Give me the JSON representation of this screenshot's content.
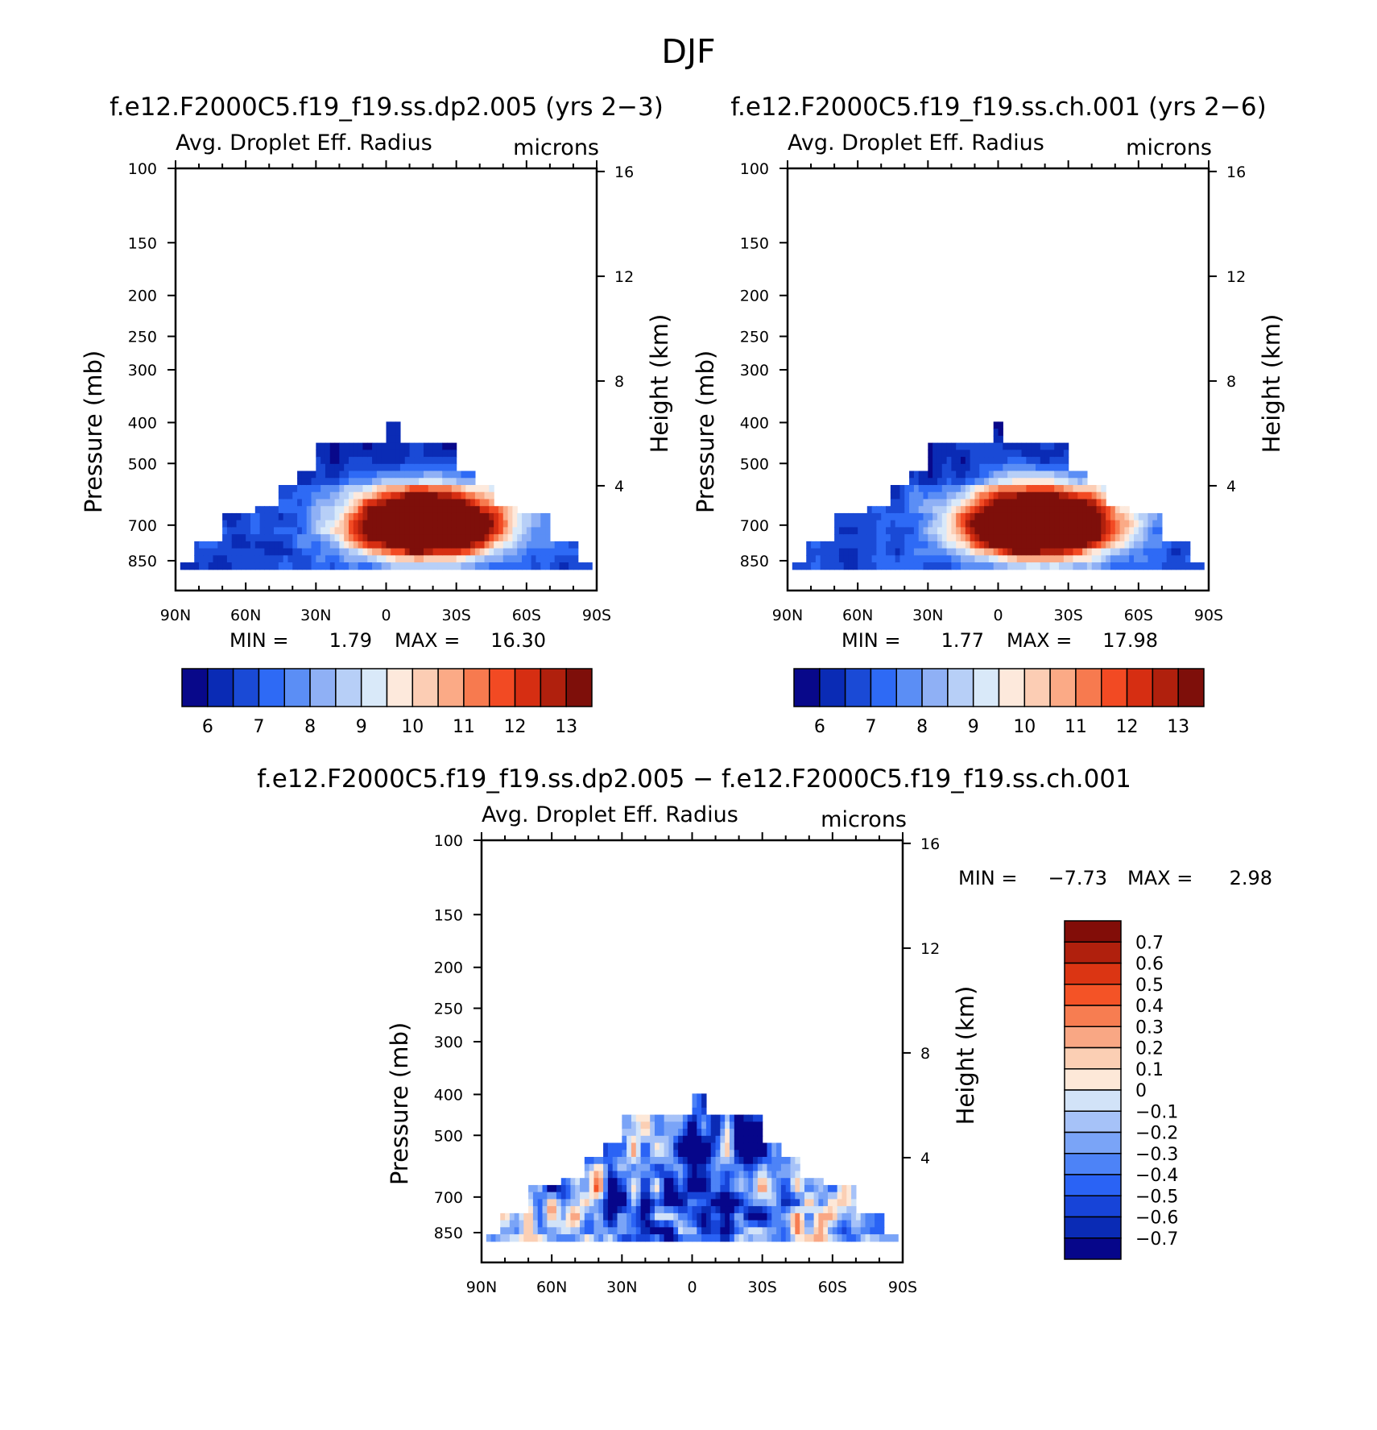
{
  "figure": {
    "super_title": "DJF"
  },
  "palette": {
    "abs_colors": [
      "#08088a",
      "#0a2bb5",
      "#1a4ad6",
      "#2e6af5",
      "#5b8ef5",
      "#8fb0f5",
      "#b7cff7",
      "#d9e9f9",
      "#fde9dc",
      "#fccdb4",
      "#fbaa86",
      "#f77a4f",
      "#f24a23",
      "#d62e12",
      "#b0200d",
      "#7e0f0a"
    ],
    "diff_colors": [
      "#06068a",
      "#0a2bb5",
      "#1744d8",
      "#2a63f5",
      "#4d83f7",
      "#7aa4f7",
      "#a6c2f8",
      "#d2e3f8",
      "#fde8d8",
      "#fbcfb4",
      "#f9a784",
      "#f77d51",
      "#f45326",
      "#db3513",
      "#b0200d",
      "#820d08"
    ],
    "frame": "#000000"
  },
  "panels": [
    {
      "id": "top-left",
      "title": "f.e12.F2000C5.f19_f19.ss.dp2.005 (yrs 2−3)",
      "left_label": "Avg. Droplet Eff. Radius",
      "right_label": "microns",
      "min_label": "MIN =",
      "min_value": "1.79",
      "max_label": "MAX =",
      "max_value": "16.30"
    },
    {
      "id": "top-right",
      "title": "f.e12.F2000C5.f19_f19.ss.ch.001 (yrs 2−6)",
      "left_label": "Avg. Droplet Eff. Radius",
      "right_label": "microns",
      "min_label": "MIN =",
      "min_value": "1.77",
      "max_label": "MAX =",
      "max_value": "17.98"
    },
    {
      "id": "bottom",
      "title": "f.e12.F2000C5.f19_f19.ss.dp2.005 − f.e12.F2000C5.f19_f19.ss.ch.001",
      "left_label": "Avg. Droplet Eff. Radius",
      "right_label": "microns",
      "min_label": "MIN =",
      "min_value": "−7.73",
      "max_label": "MAX =",
      "max_value": "2.98"
    }
  ],
  "chart_data": [
    {
      "type": "heatmap",
      "title": "f.e12.F2000C5.f19_f19.ss.dp2.005 (yrs 2−3)",
      "field": "Avg. Droplet Eff. Radius",
      "units": "microns",
      "xlabel": "",
      "ylabel": "Pressure (mb)",
      "ylabel_right": "Height (km)",
      "x_ticks": [
        "90N",
        "60N",
        "30N",
        "0",
        "30S",
        "60S",
        "90S"
      ],
      "x_tick_values": [
        90,
        60,
        30,
        0,
        -30,
        -60,
        -90
      ],
      "y_ticks": [
        100,
        150,
        200,
        250,
        300,
        400,
        500,
        700,
        850
      ],
      "y_range": [
        100,
        1000
      ],
      "height_ticks": [
        4,
        8,
        12,
        16
      ],
      "colorbar_levels": [
        5.5,
        6,
        6.5,
        7,
        7.5,
        8,
        8.5,
        9,
        9.5,
        10,
        10.5,
        11,
        11.5,
        12,
        12.5,
        13
      ],
      "colorbar_labels": [
        6,
        7,
        8,
        9,
        10,
        11,
        12,
        13
      ],
      "min": 1.79,
      "max": 16.3
    },
    {
      "type": "heatmap",
      "title": "f.e12.F2000C5.f19_f19.ss.ch.001 (yrs 2−6)",
      "field": "Avg. Droplet Eff. Radius",
      "units": "microns",
      "xlabel": "",
      "ylabel": "Pressure (mb)",
      "ylabel_right": "Height (km)",
      "x_ticks": [
        "90N",
        "60N",
        "30N",
        "0",
        "30S",
        "60S",
        "90S"
      ],
      "x_tick_values": [
        90,
        60,
        30,
        0,
        -30,
        -60,
        -90
      ],
      "y_ticks": [
        100,
        150,
        200,
        250,
        300,
        400,
        500,
        700,
        850
      ],
      "y_range": [
        100,
        1000
      ],
      "height_ticks": [
        4,
        8,
        12,
        16
      ],
      "colorbar_levels": [
        5.5,
        6,
        6.5,
        7,
        7.5,
        8,
        8.5,
        9,
        9.5,
        10,
        10.5,
        11,
        11.5,
        12,
        12.5,
        13
      ],
      "colorbar_labels": [
        6,
        7,
        8,
        9,
        10,
        11,
        12,
        13
      ],
      "min": 1.77,
      "max": 17.98
    },
    {
      "type": "heatmap",
      "title": "f.e12.F2000C5.f19_f19.ss.dp2.005 − f.e12.F2000C5.f19_f19.ss.ch.001",
      "field": "Avg. Droplet Eff. Radius",
      "units": "microns",
      "xlabel": "",
      "ylabel": "Pressure (mb)",
      "ylabel_right": "Height (km)",
      "x_ticks": [
        "90N",
        "60N",
        "30N",
        "0",
        "30S",
        "60S",
        "90S"
      ],
      "x_tick_values": [
        90,
        60,
        30,
        0,
        -30,
        -60,
        -90
      ],
      "y_ticks": [
        100,
        150,
        200,
        250,
        300,
        400,
        500,
        700,
        850
      ],
      "y_range": [
        100,
        1000
      ],
      "height_ticks": [
        4,
        8,
        12,
        16
      ],
      "colorbar_levels": [
        -0.7,
        -0.6,
        -0.5,
        -0.4,
        -0.3,
        -0.2,
        -0.1,
        0,
        0.1,
        0.2,
        0.3,
        0.4,
        0.5,
        0.6,
        0.7
      ],
      "colorbar_labels": [
        "0.7",
        "0.6",
        "0.5",
        "0.4",
        "0.3",
        "0.2",
        "0.1",
        "0",
        "−0.1",
        "−0.2",
        "−0.3",
        "−0.4",
        "−0.5",
        "−0.6",
        "−0.7"
      ],
      "min": -7.73,
      "max": 2.98
    }
  ]
}
